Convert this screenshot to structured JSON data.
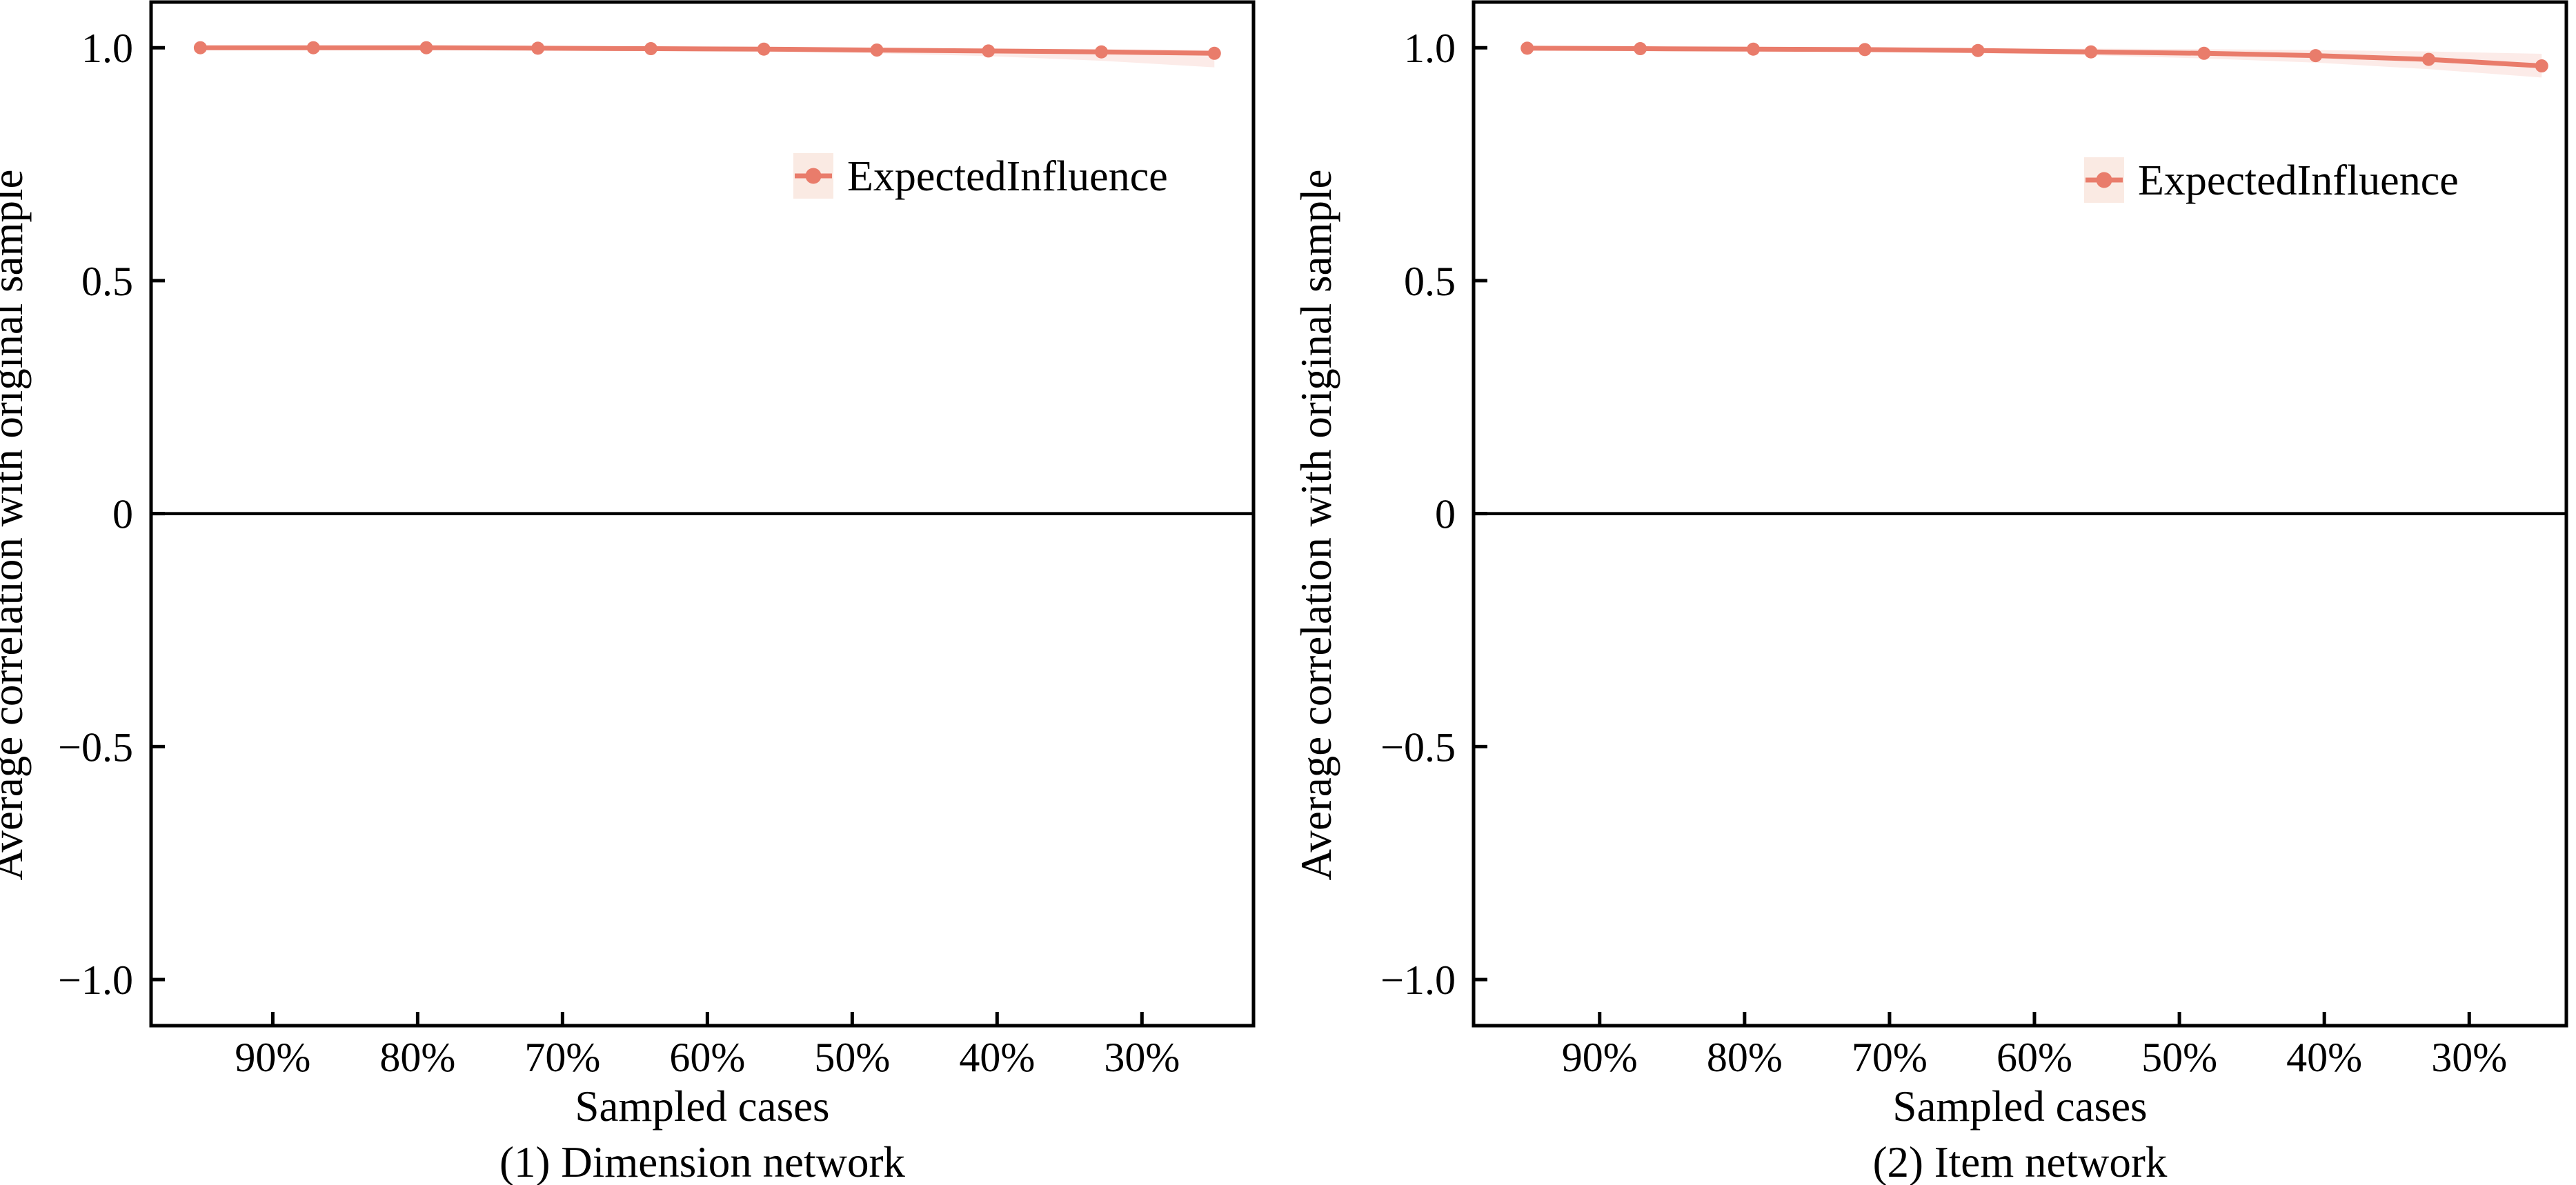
{
  "figure": {
    "background": "#ffffff",
    "description_left_caption": "(1) Dimension network",
    "description_right_caption": "(2) Item network"
  },
  "colors": {
    "line": "#E97C6B",
    "marker": "#E97C6B",
    "ribbon": "rgba(234,128,110,0.16)",
    "legend_key_bg": "#FAEAE3",
    "axis": "#000000",
    "text": "#000000"
  },
  "chart_data": [
    {
      "type": "line",
      "caption": "(1) Dimension network",
      "xlabel": "Sampled cases",
      "ylabel": "Average correlation with original sample",
      "legend_label": "ExpectedInfluence",
      "legend_position": "inside-top-right",
      "grid": false,
      "zero_line": true,
      "xlim": [
        98.4,
        22.3
      ],
      "ylim": [
        -1.099,
        1.098
      ],
      "x_ticks": [
        {
          "value": 90,
          "label": "90%"
        },
        {
          "value": 80,
          "label": "80%"
        },
        {
          "value": 70,
          "label": "70%"
        },
        {
          "value": 60,
          "label": "60%"
        },
        {
          "value": 50,
          "label": "50%"
        },
        {
          "value": 40,
          "label": "40%"
        },
        {
          "value": 30,
          "label": "30%"
        }
      ],
      "y_ticks": [
        {
          "value": 1,
          "label": "1.0"
        },
        {
          "value": 0.5,
          "label": "0.5"
        },
        {
          "value": 0,
          "label": "0"
        },
        {
          "value": -0.5,
          "label": "−0.5"
        },
        {
          "value": -1,
          "label": "−1.0"
        }
      ],
      "series": [
        {
          "name": "ExpectedInfluence",
          "x": [
            95,
            87.2,
            79.4,
            71.7,
            63.9,
            56.1,
            48.3,
            40.6,
            32.8,
            25
          ],
          "y": [
            1.0,
            1.0,
            1.0,
            0.999,
            0.998,
            0.997,
            0.995,
            0.993,
            0.991,
            0.988
          ],
          "ci_lower": [
            1.0,
            0.999,
            0.998,
            0.997,
            0.995,
            0.992,
            0.988,
            0.982,
            0.972,
            0.958
          ],
          "ci_upper": [
            1.0,
            1.0,
            1.0,
            1.0,
            1.0,
            0.999,
            0.999,
            0.998,
            0.997,
            0.995
          ]
        }
      ]
    },
    {
      "type": "line",
      "caption": "(2) Item network",
      "xlabel": "Sampled cases",
      "ylabel": "Average correlation with original sample",
      "legend_label": "ExpectedInfluence",
      "legend_position": "inside-top-right",
      "grid": false,
      "zero_line": true,
      "xlim": [
        98.7,
        23.3
      ],
      "ylim": [
        -1.099,
        1.098
      ],
      "x_ticks": [
        {
          "value": 90,
          "label": "90%"
        },
        {
          "value": 80,
          "label": "80%"
        },
        {
          "value": 70,
          "label": "70%"
        },
        {
          "value": 60,
          "label": "60%"
        },
        {
          "value": 50,
          "label": "50%"
        },
        {
          "value": 40,
          "label": "40%"
        },
        {
          "value": 30,
          "label": "30%"
        }
      ],
      "y_ticks": [
        {
          "value": 1,
          "label": "1.0"
        },
        {
          "value": 0.5,
          "label": "0.5"
        },
        {
          "value": 0,
          "label": "0"
        },
        {
          "value": -0.5,
          "label": "−0.5"
        },
        {
          "value": -1,
          "label": "−1.0"
        }
      ],
      "series": [
        {
          "name": "ExpectedInfluence",
          "x": [
            95,
            87.2,
            79.4,
            71.7,
            63.9,
            56.1,
            48.3,
            40.6,
            32.8,
            25
          ],
          "y": [
            0.999,
            0.998,
            0.997,
            0.996,
            0.994,
            0.991,
            0.988,
            0.983,
            0.975,
            0.961
          ],
          "ci_lower": [
            0.999,
            0.997,
            0.995,
            0.992,
            0.988,
            0.984,
            0.977,
            0.968,
            0.954,
            0.936
          ],
          "ci_upper": [
            0.999,
            0.999,
            0.999,
            0.999,
            0.998,
            0.998,
            0.997,
            0.995,
            0.992,
            0.987
          ]
        }
      ]
    }
  ]
}
